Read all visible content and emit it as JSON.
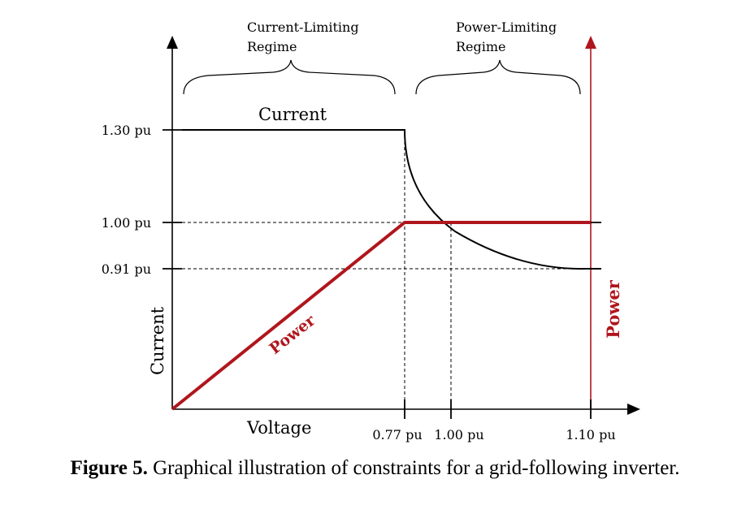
{
  "figure": {
    "regimes": {
      "current_limiting": [
        "Current-Limiting",
        "Regime"
      ],
      "power_limiting": [
        "Power-Limiting",
        "Regime"
      ]
    },
    "curve_labels": {
      "current": "Current",
      "power_on_curve": "Power"
    },
    "axes": {
      "left_axis_label": "Current",
      "right_axis_label": "Power",
      "x_axis_label": "Voltage"
    },
    "y_ticks": [
      "1.30 pu",
      "1.00 pu",
      "0.91 pu"
    ],
    "x_ticks": [
      "0.77 pu",
      "1.00 pu",
      "1.10 pu"
    ],
    "colors": {
      "current_line": "#000000",
      "power_line": "#b0161d",
      "power_axis": "#b0161d"
    }
  },
  "caption": {
    "label": "Figure 5.",
    "text": "Graphical illustration of constraints for a grid-following inverter."
  }
}
